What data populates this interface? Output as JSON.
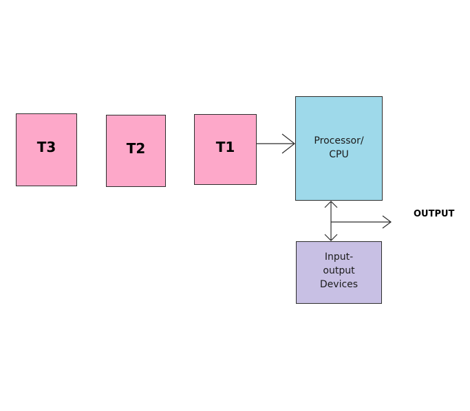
{
  "tasks": {
    "t3": "T3",
    "t2": "T2",
    "t1": "T1"
  },
  "processor": {
    "label": "Processor/\nCPU"
  },
  "io_devices": {
    "label": "Input-\noutput\nDevices"
  },
  "output": {
    "label": "OUTPUT"
  },
  "colors": {
    "task_fill": "#fda8c9",
    "processor_fill": "#9ed9ea",
    "io_fill": "#c8c0e4",
    "line": "#2b2b2b"
  }
}
